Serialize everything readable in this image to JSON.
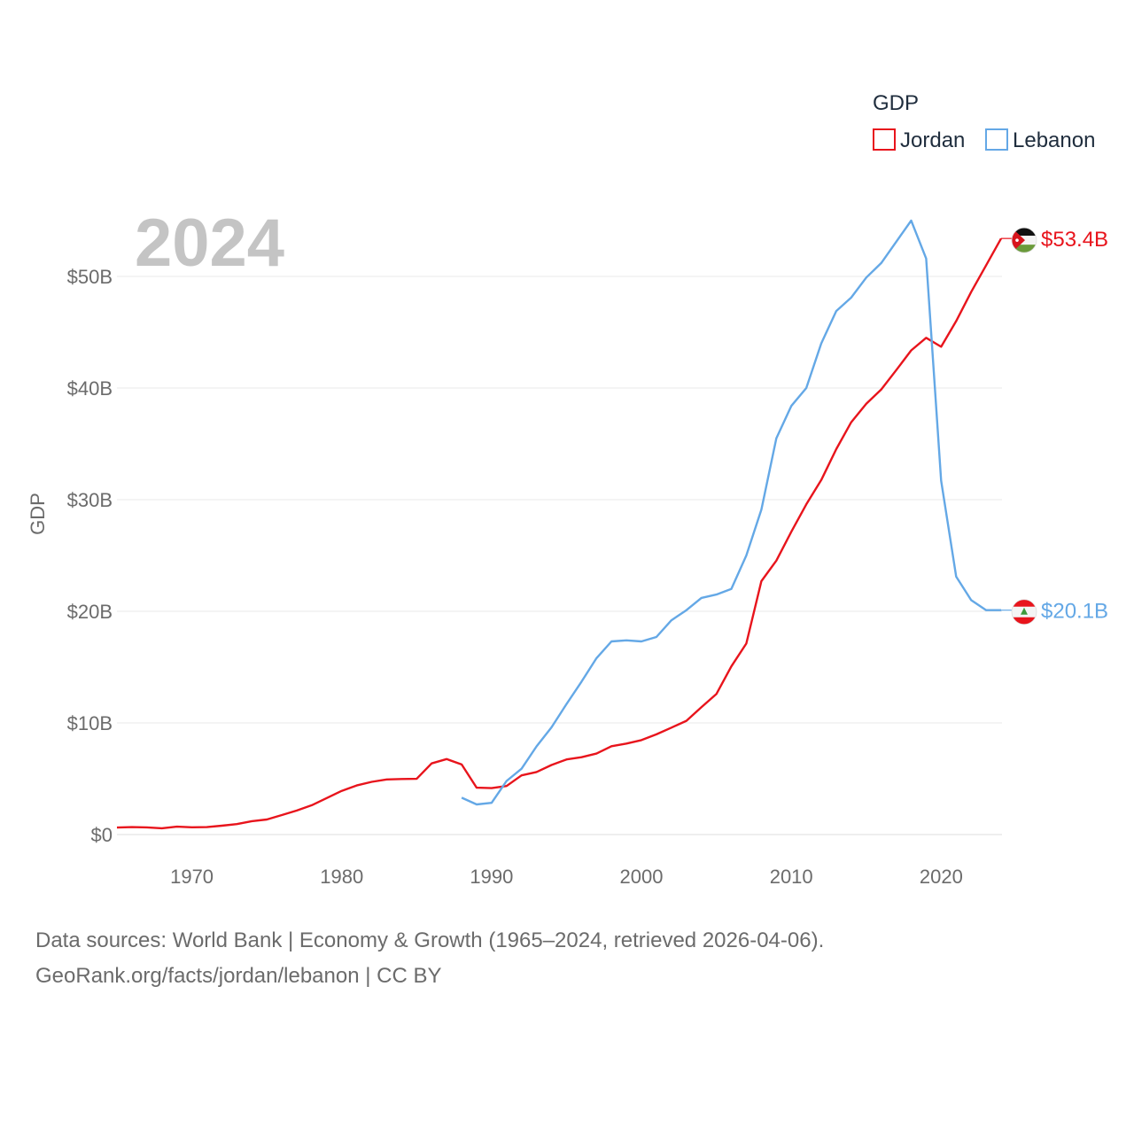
{
  "chart_data": {
    "type": "line",
    "year_label": "2024",
    "ylabel": "GDP",
    "y_ticks": [
      {
        "value": 0,
        "label": "$0"
      },
      {
        "value": 10,
        "label": "$10B"
      },
      {
        "value": 20,
        "label": "$20B"
      },
      {
        "value": 30,
        "label": "$30B"
      },
      {
        "value": 40,
        "label": "$40B"
      },
      {
        "value": 50,
        "label": "$50B"
      }
    ],
    "x_ticks": [
      1970,
      1980,
      1990,
      2000,
      2010,
      2020
    ],
    "xlim": [
      1965,
      2024
    ],
    "ylim": [
      0,
      55
    ],
    "legend": {
      "title": "GDP",
      "position": "top-right"
    },
    "series": [
      {
        "name": "Jordan",
        "color": "#e8141c",
        "end_label": "$53.4B",
        "flag": "jordan-flag",
        "points": [
          [
            1965,
            0.63
          ],
          [
            1966,
            0.67
          ],
          [
            1967,
            0.64
          ],
          [
            1968,
            0.56
          ],
          [
            1969,
            0.71
          ],
          [
            1970,
            0.65
          ],
          [
            1971,
            0.67
          ],
          [
            1972,
            0.79
          ],
          [
            1973,
            0.94
          ],
          [
            1974,
            1.2
          ],
          [
            1975,
            1.35
          ],
          [
            1976,
            1.75
          ],
          [
            1977,
            2.15
          ],
          [
            1978,
            2.63
          ],
          [
            1979,
            3.27
          ],
          [
            1980,
            3.91
          ],
          [
            1981,
            4.4
          ],
          [
            1982,
            4.72
          ],
          [
            1983,
            4.94
          ],
          [
            1984,
            4.98
          ],
          [
            1985,
            4.99
          ],
          [
            1986,
            6.37
          ],
          [
            1987,
            6.76
          ],
          [
            1988,
            6.28
          ],
          [
            1989,
            4.2
          ],
          [
            1990,
            4.16
          ],
          [
            1991,
            4.35
          ],
          [
            1992,
            5.3
          ],
          [
            1993,
            5.6
          ],
          [
            1994,
            6.23
          ],
          [
            1995,
            6.73
          ],
          [
            1996,
            6.93
          ],
          [
            1997,
            7.25
          ],
          [
            1998,
            7.91
          ],
          [
            1999,
            8.15
          ],
          [
            2000,
            8.46
          ],
          [
            2001,
            8.98
          ],
          [
            2002,
            9.58
          ],
          [
            2003,
            10.19
          ],
          [
            2004,
            11.41
          ],
          [
            2005,
            12.59
          ],
          [
            2006,
            15.06
          ],
          [
            2007,
            17.11
          ],
          [
            2008,
            22.7
          ],
          [
            2009,
            24.54
          ],
          [
            2010,
            27.13
          ],
          [
            2011,
            29.58
          ],
          [
            2012,
            31.76
          ],
          [
            2013,
            34.52
          ],
          [
            2014,
            36.94
          ],
          [
            2015,
            38.59
          ],
          [
            2016,
            39.87
          ],
          [
            2017,
            41.6
          ],
          [
            2018,
            43.37
          ],
          [
            2019,
            44.5
          ],
          [
            2020,
            43.7
          ],
          [
            2021,
            46.0
          ],
          [
            2022,
            48.6
          ],
          [
            2023,
            51.0
          ],
          [
            2024,
            53.4
          ]
        ]
      },
      {
        "name": "Lebanon",
        "color": "#64a8e6",
        "end_label": "$20.1B",
        "flag": "lebanon-flag",
        "points": [
          [
            1988,
            3.3
          ],
          [
            1989,
            2.7
          ],
          [
            1990,
            2.84
          ],
          [
            1991,
            4.8
          ],
          [
            1992,
            5.9
          ],
          [
            1993,
            7.9
          ],
          [
            1994,
            9.6
          ],
          [
            1995,
            11.7
          ],
          [
            1996,
            13.7
          ],
          [
            1997,
            15.8
          ],
          [
            1998,
            17.3
          ],
          [
            1999,
            17.4
          ],
          [
            2000,
            17.3
          ],
          [
            2001,
            17.7
          ],
          [
            2002,
            19.2
          ],
          [
            2003,
            20.1
          ],
          [
            2004,
            21.2
          ],
          [
            2005,
            21.5
          ],
          [
            2006,
            22.0
          ],
          [
            2007,
            25.0
          ],
          [
            2008,
            29.1
          ],
          [
            2009,
            35.5
          ],
          [
            2010,
            38.4
          ],
          [
            2011,
            40.0
          ],
          [
            2012,
            44.0
          ],
          [
            2013,
            46.9
          ],
          [
            2014,
            48.1
          ],
          [
            2015,
            49.9
          ],
          [
            2016,
            51.2
          ],
          [
            2017,
            53.1
          ],
          [
            2018,
            55.0
          ],
          [
            2019,
            51.6
          ],
          [
            2020,
            31.7
          ],
          [
            2021,
            23.1
          ],
          [
            2022,
            21.0
          ],
          [
            2023,
            20.1
          ],
          [
            2024,
            20.1
          ]
        ]
      }
    ]
  },
  "footer": {
    "sources_line": "Data sources: World Bank | Economy & Growth (1965–2024, retrieved 2026-04-06).",
    "attribution_line": "GeoRank.org/facts/jordan/lebanon | CC BY"
  }
}
